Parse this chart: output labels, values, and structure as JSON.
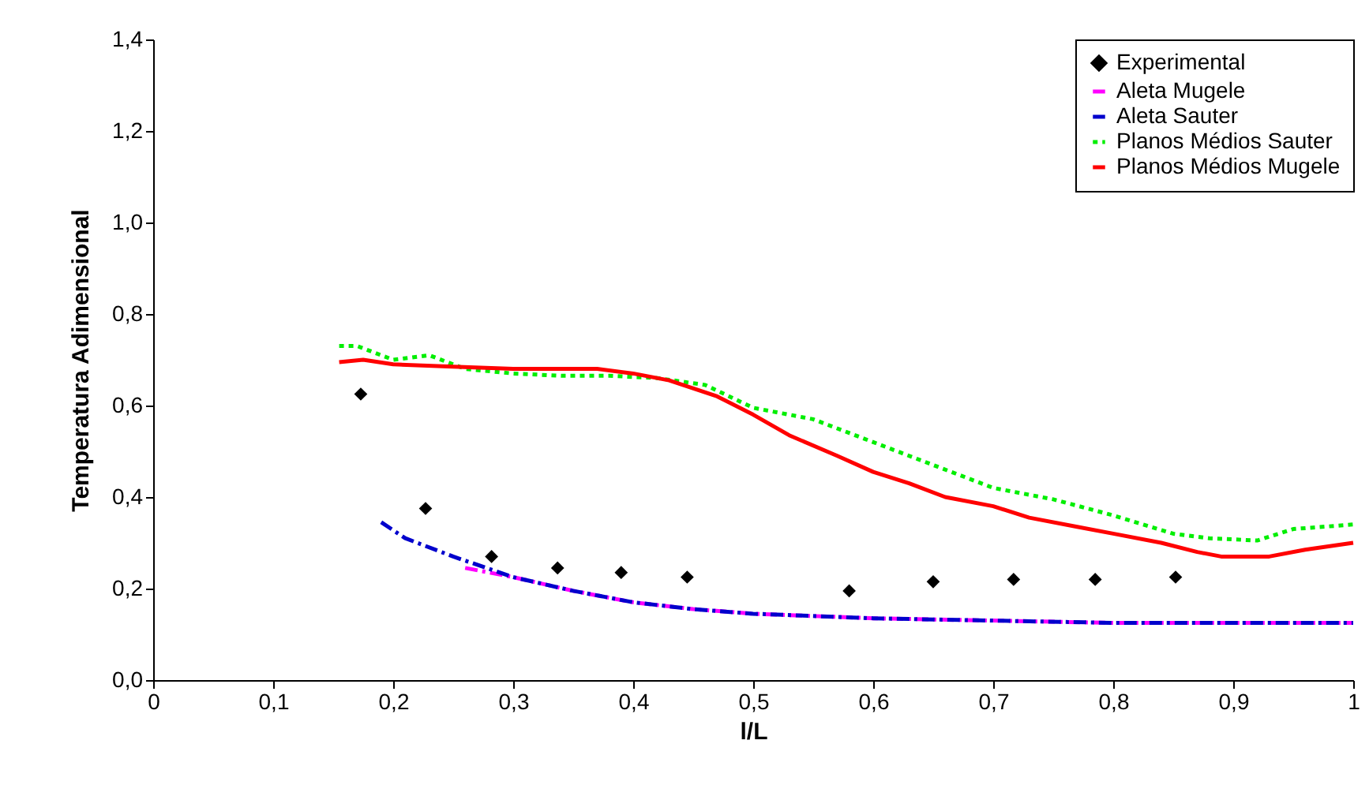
{
  "chart_data": {
    "type": "line",
    "xlabel": "l/L",
    "ylabel": "Temperatura Adimensional",
    "xlim": [
      0,
      1
    ],
    "ylim": [
      0,
      1.4
    ],
    "xticks": [
      0,
      {
        "value": 0.1,
        "label": "0,1"
      },
      {
        "value": 0.2,
        "label": "0,2"
      },
      {
        "value": 0.3,
        "label": "0,3"
      },
      {
        "value": 0.4,
        "label": "0,4"
      },
      {
        "value": 0.5,
        "label": "0,5"
      },
      {
        "value": 0.6,
        "label": "0,6"
      },
      {
        "value": 0.7,
        "label": "0,7"
      },
      {
        "value": 0.8,
        "label": "0,8"
      },
      {
        "value": 0.9,
        "label": "0,9"
      },
      1
    ],
    "yticks": [
      {
        "value": 0,
        "label": "0,0"
      },
      {
        "value": 0.2,
        "label": "0,2"
      },
      {
        "value": 0.4,
        "label": "0,4"
      },
      {
        "value": 0.6,
        "label": "0,6"
      },
      {
        "value": 0.8,
        "label": "0,8"
      },
      {
        "value": 1,
        "label": "1,0"
      },
      {
        "value": 1.2,
        "label": "1,2"
      },
      {
        "value": 1.4,
        "label": "1,4"
      }
    ],
    "grid": false,
    "legend": "top right",
    "series": [
      {
        "name": "Experimental",
        "type": "scatter",
        "marker": "diamond",
        "color": "#000000",
        "x": [
          0.173,
          0.227,
          0.282,
          0.337,
          0.39,
          0.445,
          0.58,
          0.65,
          0.717,
          0.785,
          0.852
        ],
        "values": [
          0.625,
          0.375,
          0.27,
          0.245,
          0.235,
          0.225,
          0.195,
          0.215,
          0.22,
          0.22,
          0.225
        ]
      },
      {
        "name": "Aleta Mugele",
        "type": "line",
        "line_style": "dashed",
        "color": "#ff00ff",
        "x": [
          0.26,
          0.3,
          0.35,
          0.4,
          0.45,
          0.5,
          0.6,
          0.7,
          0.8,
          0.9,
          1.0
        ],
        "values": [
          0.245,
          0.225,
          0.195,
          0.17,
          0.155,
          0.145,
          0.135,
          0.13,
          0.125,
          0.125,
          0.125
        ]
      },
      {
        "name": "Aleta Sauter",
        "type": "line",
        "line_style": "dashed",
        "color": "#0000cc",
        "x": [
          0.19,
          0.21,
          0.25,
          0.3,
          0.35,
          0.4,
          0.45,
          0.5,
          0.6,
          0.7,
          0.8,
          0.9,
          1.0
        ],
        "values": [
          0.345,
          0.31,
          0.27,
          0.225,
          0.195,
          0.17,
          0.155,
          0.145,
          0.135,
          0.13,
          0.125,
          0.125,
          0.125
        ]
      },
      {
        "name": "Planos Médios Sauter",
        "type": "line",
        "line_style": "dotted",
        "color": "#00ee00",
        "x": [
          0.155,
          0.17,
          0.2,
          0.23,
          0.26,
          0.3,
          0.34,
          0.38,
          0.42,
          0.46,
          0.5,
          0.55,
          0.6,
          0.65,
          0.7,
          0.75,
          0.8,
          0.85,
          0.88,
          0.92,
          0.95,
          1.0
        ],
        "values": [
          0.73,
          0.73,
          0.7,
          0.71,
          0.68,
          0.67,
          0.665,
          0.665,
          0.66,
          0.645,
          0.595,
          0.57,
          0.52,
          0.47,
          0.42,
          0.395,
          0.36,
          0.32,
          0.31,
          0.305,
          0.33,
          0.34
        ]
      },
      {
        "name": "Planos Médios Mugele",
        "type": "line",
        "line_style": "solid",
        "color": "#ff0000",
        "x": [
          0.155,
          0.175,
          0.2,
          0.25,
          0.3,
          0.37,
          0.4,
          0.43,
          0.47,
          0.5,
          0.53,
          0.57,
          0.6,
          0.63,
          0.66,
          0.7,
          0.73,
          0.77,
          0.8,
          0.84,
          0.87,
          0.89,
          0.93,
          0.96,
          1.0
        ],
        "values": [
          0.695,
          0.7,
          0.69,
          0.685,
          0.68,
          0.68,
          0.67,
          0.655,
          0.62,
          0.58,
          0.535,
          0.49,
          0.455,
          0.43,
          0.4,
          0.38,
          0.355,
          0.335,
          0.32,
          0.3,
          0.28,
          0.27,
          0.27,
          0.285,
          0.3
        ]
      }
    ]
  }
}
